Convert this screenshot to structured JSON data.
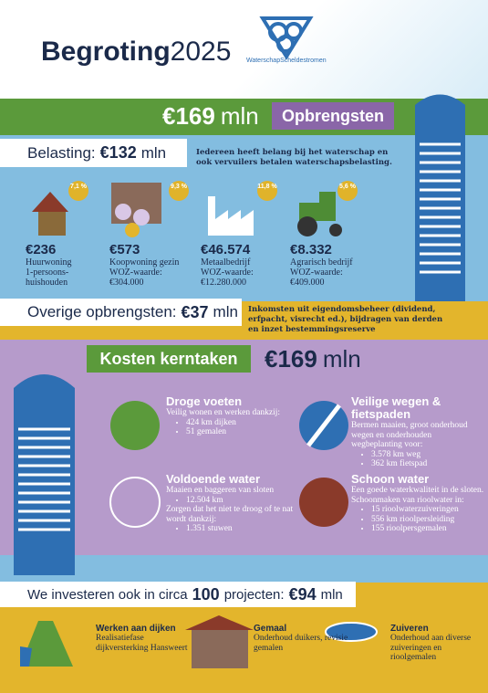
{
  "header": {
    "title": "Begroting",
    "year": "2025",
    "logo": "WaterschapScheldestromen"
  },
  "income": {
    "total": "€169",
    "unit": "mln",
    "label": "Opbrengsten",
    "tax": {
      "label": "Belasting:",
      "amount": "€132",
      "unit": "mln",
      "note": "Iedereen heeft belang bij het waterschap en ook vervuilers betalen waterschapsbelasting."
    },
    "items": [
      {
        "change": "7,1 %",
        "amount": "€236",
        "lines": [
          "Huurwoning",
          "1-persoons-",
          "huishouden"
        ]
      },
      {
        "change": "9,3 %",
        "amount": "€573",
        "lines": [
          "Koopwoning gezin",
          "WOZ-waarde:",
          "€304.000"
        ]
      },
      {
        "change": "11,8 %",
        "amount": "€46.574",
        "lines": [
          "Metaalbedrijf",
          "WOZ-waarde:",
          "€12.280.000"
        ]
      },
      {
        "change": "5,6 %",
        "amount": "€8.332",
        "lines": [
          "Agrarisch bedrijf",
          "WOZ-waarde:",
          "€409.000"
        ]
      }
    ],
    "other": {
      "label": "Overige opbrengsten:",
      "amount": "€37",
      "unit": "mln",
      "note": "Inkomsten uit eigendomsbeheer (dividend, erfpacht, visrecht ed.), bijdragen van derden en inzet bestemmingsreserve"
    }
  },
  "costs": {
    "label": "Kosten kerntaken",
    "total": "€169",
    "unit": "mln",
    "tasks": [
      {
        "title": "Droge voeten",
        "blocks": [
          {
            "text": "Veilig wonen en werken dankzij:",
            "bullets": [
              "424 km dijken",
              "51 gemalen"
            ]
          }
        ]
      },
      {
        "title": "Veilige wegen & fietspaden",
        "blocks": [
          {
            "text": "Bermen maaien, groot onderhoud wegen en onderhouden wegbeplanting voor:",
            "bullets": [
              "3.578 km weg",
              "362 km fietspad"
            ]
          }
        ]
      },
      {
        "title": "Voldoende water",
        "blocks": [
          {
            "text": "Maaien en baggeren van sloten",
            "bullets": [
              "12.504 km"
            ]
          },
          {
            "text": "Zorgen dat het niet te droog of te nat wordt dankzij:",
            "bullets": [
              "1.351 stuwen"
            ]
          }
        ]
      },
      {
        "title": "Schoon water",
        "blocks": [
          {
            "text": "Een goede waterkwaliteit in de sloten. Schoonmaken van rioolwater in:",
            "bullets": [
              "15 rioolwaterzuiveringen",
              "556 km rioolpersleiding",
              "155 rioolpersgemalen"
            ]
          }
        ]
      }
    ]
  },
  "investments": {
    "prefix": "We investeren ook in circa",
    "count": "100",
    "middle": "projecten:",
    "amount": "€94",
    "unit": "mln",
    "projects": [
      {
        "title": "Werken aan dijken",
        "text": "Realisatiefase dijkversterking Hansweert"
      },
      {
        "title": "Gemaal",
        "text": "Onderhoud duikers, revisie gemalen"
      },
      {
        "title": "Zuiveren",
        "text": "Onderhoud aan diverse zuiveringen en rioolgemalen"
      }
    ]
  }
}
